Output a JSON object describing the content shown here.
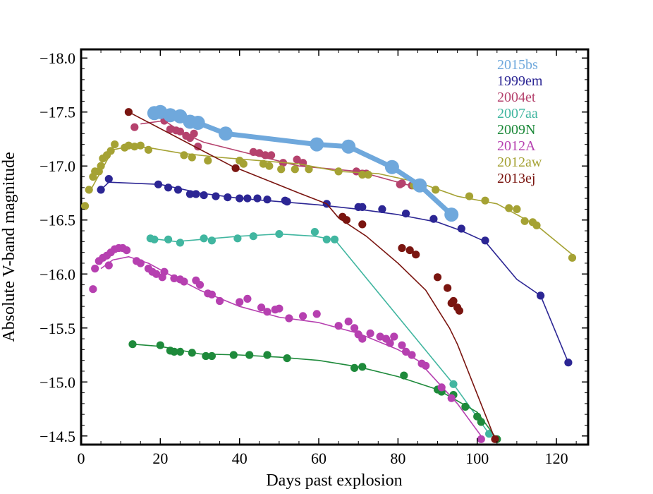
{
  "chart_data": {
    "type": "line",
    "title": "",
    "xlabel": "Days past explosion",
    "ylabel": "Absolute V-band magnitude",
    "xlim": [
      0,
      128
    ],
    "ylim": [
      -14.42,
      -18.08
    ],
    "y_inverted": true,
    "x_ticks": [
      0,
      20,
      40,
      60,
      80,
      100,
      120
    ],
    "x_tick_labels": [
      "0",
      "20",
      "40",
      "60",
      "80",
      "100",
      "120"
    ],
    "y_ticks": [
      -18.0,
      -17.5,
      -17.0,
      -16.5,
      -16.0,
      -15.5,
      -15.0,
      -14.5
    ],
    "y_tick_labels": [
      "−18.0",
      "−17.5",
      "−17.0",
      "−16.5",
      "−16.0",
      "−15.5",
      "−15.0",
      "−14.5"
    ],
    "legend_position": "top-right",
    "series": [
      {
        "name": "2015bs",
        "color": "#6fa8dc",
        "line": [
          [
            18.5,
            -17.49
          ],
          [
            20,
            -17.5
          ],
          [
            22.5,
            -17.47
          ],
          [
            25,
            -17.46
          ],
          [
            27.5,
            -17.41
          ],
          [
            29.5,
            -17.4
          ],
          [
            36.5,
            -17.3
          ],
          [
            59.5,
            -17.2
          ],
          [
            67.5,
            -17.18
          ],
          [
            78.5,
            -16.99
          ],
          [
            85.5,
            -16.82
          ],
          [
            93.5,
            -16.55
          ]
        ],
        "points": [
          [
            18.5,
            -17.49
          ],
          [
            20,
            -17.5
          ],
          [
            22.5,
            -17.47
          ],
          [
            25,
            -17.46
          ],
          [
            27.5,
            -17.41
          ],
          [
            29.5,
            -17.4
          ],
          [
            36.5,
            -17.3
          ],
          [
            59.5,
            -17.2
          ],
          [
            67.5,
            -17.18
          ],
          [
            78.5,
            -16.99
          ],
          [
            85.5,
            -16.82
          ],
          [
            93.5,
            -16.55
          ]
        ]
      },
      {
        "name": "1999em",
        "color": "#2c2694",
        "line": [
          [
            5,
            -16.78
          ],
          [
            7,
            -16.85
          ],
          [
            20,
            -16.83
          ],
          [
            30,
            -16.75
          ],
          [
            40,
            -16.7
          ],
          [
            60,
            -16.64
          ],
          [
            70,
            -16.6
          ],
          [
            80,
            -16.55
          ],
          [
            90,
            -16.48
          ],
          [
            96,
            -16.4
          ],
          [
            102,
            -16.3
          ],
          [
            110,
            -15.95
          ],
          [
            116,
            -15.8
          ],
          [
            123,
            -15.18
          ]
        ],
        "points": [
          [
            5,
            -16.78
          ],
          [
            7,
            -16.88
          ],
          [
            19.5,
            -16.83
          ],
          [
            22,
            -16.8
          ],
          [
            24.5,
            -16.78
          ],
          [
            27.5,
            -16.74
          ],
          [
            29,
            -16.74
          ],
          [
            31,
            -16.73
          ],
          [
            34,
            -16.72
          ],
          [
            37,
            -16.71
          ],
          [
            40,
            -16.7
          ],
          [
            42,
            -16.7
          ],
          [
            44.5,
            -16.7
          ],
          [
            47,
            -16.69
          ],
          [
            51.5,
            -16.68
          ],
          [
            52,
            -16.67
          ],
          [
            62,
            -16.65
          ],
          [
            70,
            -16.62
          ],
          [
            71,
            -16.62
          ],
          [
            76,
            -16.6
          ],
          [
            82,
            -16.56
          ],
          [
            89,
            -16.51
          ],
          [
            96,
            -16.42
          ],
          [
            102,
            -16.31
          ],
          [
            116,
            -15.8
          ],
          [
            123,
            -15.18
          ]
        ]
      },
      {
        "name": "2004et",
        "color": "#b5426d",
        "line": [
          [
            15,
            -17.39
          ],
          [
            21,
            -17.42
          ],
          [
            26,
            -17.3
          ],
          [
            31,
            -17.22
          ],
          [
            44,
            -17.1
          ],
          [
            55,
            -17.0
          ],
          [
            70,
            -16.95
          ],
          [
            80,
            -16.85
          ],
          [
            85,
            -16.8
          ]
        ],
        "points": [
          [
            13.5,
            -17.36
          ],
          [
            21,
            -17.42
          ],
          [
            22.5,
            -17.34
          ],
          [
            24,
            -17.33
          ],
          [
            25,
            -17.32
          ],
          [
            26.5,
            -17.28
          ],
          [
            27.5,
            -17.26
          ],
          [
            28.5,
            -17.3
          ],
          [
            29.5,
            -17.18
          ],
          [
            43.5,
            -17.13
          ],
          [
            45,
            -17.12
          ],
          [
            46.5,
            -17.1
          ],
          [
            48,
            -17.1
          ],
          [
            51,
            -17.03
          ],
          [
            54.5,
            -17.06
          ],
          [
            56,
            -17.03
          ],
          [
            69.5,
            -16.95
          ],
          [
            71,
            -16.93
          ],
          [
            72,
            -16.93
          ],
          [
            80.5,
            -16.83
          ],
          [
            81,
            -16.84
          ],
          [
            83.5,
            -16.82
          ]
        ]
      },
      {
        "name": "2007aa",
        "color": "#41b6a0",
        "line": [
          [
            17.5,
            -16.33
          ],
          [
            24,
            -16.3
          ],
          [
            40,
            -16.35
          ],
          [
            50,
            -16.37
          ],
          [
            59,
            -16.35
          ],
          [
            62,
            -16.33
          ],
          [
            64,
            -16.32
          ],
          [
            94,
            -14.98
          ],
          [
            103,
            -14.52
          ]
        ],
        "points": [
          [
            17.5,
            -16.33
          ],
          [
            18.5,
            -16.32
          ],
          [
            22,
            -16.32
          ],
          [
            25,
            -16.29
          ],
          [
            31,
            -16.33
          ],
          [
            33,
            -16.31
          ],
          [
            39.5,
            -16.33
          ],
          [
            43.5,
            -16.35
          ],
          [
            50,
            -16.37
          ],
          [
            59,
            -16.39
          ],
          [
            62,
            -16.32
          ],
          [
            64,
            -16.32
          ],
          [
            94,
            -14.98
          ],
          [
            103,
            -14.52
          ]
        ]
      },
      {
        "name": "2009N",
        "color": "#1e8a3b",
        "line": [
          [
            13,
            -15.35
          ],
          [
            20,
            -15.33
          ],
          [
            30,
            -15.26
          ],
          [
            40,
            -15.25
          ],
          [
            50,
            -15.23
          ],
          [
            60,
            -15.2
          ],
          [
            70,
            -15.14
          ],
          [
            80,
            -15.05
          ],
          [
            90,
            -14.93
          ],
          [
            100,
            -14.72
          ],
          [
            105,
            -14.47
          ]
        ],
        "points": [
          [
            13,
            -15.35
          ],
          [
            20,
            -15.34
          ],
          [
            22.5,
            -15.29
          ],
          [
            23.5,
            -15.28
          ],
          [
            25,
            -15.28
          ],
          [
            28,
            -15.27
          ],
          [
            31.5,
            -15.24
          ],
          [
            33,
            -15.24
          ],
          [
            38.5,
            -15.25
          ],
          [
            42.5,
            -15.25
          ],
          [
            47,
            -15.25
          ],
          [
            52,
            -15.22
          ],
          [
            69,
            -15.13
          ],
          [
            71,
            -15.14
          ],
          [
            81.5,
            -15.06
          ],
          [
            90,
            -14.93
          ],
          [
            91,
            -14.91
          ],
          [
            94,
            -14.88
          ],
          [
            97,
            -14.77
          ],
          [
            100,
            -14.68
          ],
          [
            101,
            -14.63
          ],
          [
            105,
            -14.47
          ]
        ]
      },
      {
        "name": "2012A",
        "color": "#b640b0",
        "line": [
          [
            5,
            -16.05
          ],
          [
            8,
            -16.13
          ],
          [
            12,
            -16.16
          ],
          [
            17,
            -16.1
          ],
          [
            22,
            -16.0
          ],
          [
            30,
            -15.85
          ],
          [
            40,
            -15.7
          ],
          [
            50,
            -15.6
          ],
          [
            60,
            -15.55
          ],
          [
            70,
            -15.45
          ],
          [
            80,
            -15.3
          ],
          [
            85,
            -15.2
          ],
          [
            90,
            -15.0
          ],
          [
            95,
            -14.8
          ],
          [
            101,
            -14.5
          ]
        ],
        "points": [
          [
            3,
            -15.86
          ],
          [
            3.5,
            -16.05
          ],
          [
            4.5,
            -16.12
          ],
          [
            5.5,
            -16.15
          ],
          [
            6.5,
            -16.17
          ],
          [
            7,
            -16.08
          ],
          [
            7.5,
            -16.2
          ],
          [
            8.5,
            -16.23
          ],
          [
            9.5,
            -16.24
          ],
          [
            10.5,
            -16.24
          ],
          [
            11.5,
            -16.22
          ],
          [
            14,
            -16.12
          ],
          [
            15,
            -16.1
          ],
          [
            17,
            -16.05
          ],
          [
            18,
            -16.02
          ],
          [
            19,
            -16.0
          ],
          [
            20.5,
            -15.97
          ],
          [
            21,
            -16.02
          ],
          [
            23.5,
            -15.96
          ],
          [
            25,
            -15.95
          ],
          [
            26,
            -15.93
          ],
          [
            29,
            -15.94
          ],
          [
            30,
            -15.9
          ],
          [
            32,
            -15.82
          ],
          [
            33,
            -15.81
          ],
          [
            35,
            -15.75
          ],
          [
            40,
            -15.74
          ],
          [
            42,
            -15.77
          ],
          [
            45.5,
            -15.69
          ],
          [
            47,
            -15.65
          ],
          [
            49,
            -15.67
          ],
          [
            50,
            -15.68
          ],
          [
            52.5,
            -15.59
          ],
          [
            56,
            -15.61
          ],
          [
            59.5,
            -15.63
          ],
          [
            65,
            -15.52
          ],
          [
            67.5,
            -15.56
          ],
          [
            69,
            -15.5
          ],
          [
            70,
            -15.44
          ],
          [
            71,
            -15.4
          ],
          [
            73,
            -15.45
          ],
          [
            75.5,
            -15.42
          ],
          [
            77,
            -15.4
          ],
          [
            78,
            -15.36
          ],
          [
            79,
            -15.42
          ],
          [
            81,
            -15.34
          ],
          [
            82,
            -15.28
          ],
          [
            83.5,
            -15.25
          ],
          [
            86,
            -15.17
          ],
          [
            87,
            -15.15
          ],
          [
            91,
            -14.95
          ],
          [
            93.5,
            -14.85
          ],
          [
            101,
            -14.47
          ]
        ]
      },
      {
        "name": "2012aw",
        "color": "#a5a234",
        "line": [
          [
            2,
            -16.75
          ],
          [
            5,
            -16.95
          ],
          [
            8,
            -17.15
          ],
          [
            12,
            -17.18
          ],
          [
            17,
            -17.17
          ],
          [
            25,
            -17.12
          ],
          [
            35,
            -17.08
          ],
          [
            45,
            -17.05
          ],
          [
            55,
            -17.02
          ],
          [
            65,
            -16.95
          ],
          [
            75,
            -16.93
          ],
          [
            85,
            -16.85
          ],
          [
            95,
            -16.72
          ],
          [
            105,
            -16.65
          ],
          [
            115,
            -16.45
          ],
          [
            124,
            -16.18
          ]
        ],
        "points": [
          [
            1,
            -16.63
          ],
          [
            2,
            -16.78
          ],
          [
            3,
            -16.9
          ],
          [
            3.5,
            -16.95
          ],
          [
            4.5,
            -16.95
          ],
          [
            5,
            -17.0
          ],
          [
            5.5,
            -17.07
          ],
          [
            6.5,
            -17.1
          ],
          [
            7.5,
            -17.14
          ],
          [
            8.5,
            -17.2
          ],
          [
            11,
            -17.17
          ],
          [
            12,
            -17.19
          ],
          [
            13.5,
            -17.18
          ],
          [
            15,
            -17.19
          ],
          [
            17,
            -17.15
          ],
          [
            26,
            -17.1
          ],
          [
            28,
            -17.08
          ],
          [
            32,
            -17.05
          ],
          [
            40,
            -17.05
          ],
          [
            41,
            -17.02
          ],
          [
            46,
            -17.02
          ],
          [
            47.5,
            -17.0
          ],
          [
            50.5,
            -16.97
          ],
          [
            54,
            -16.97
          ],
          [
            57.5,
            -16.97
          ],
          [
            65,
            -16.95
          ],
          [
            71,
            -16.92
          ],
          [
            72.5,
            -16.92
          ],
          [
            84,
            -16.82
          ],
          [
            89.5,
            -16.78
          ],
          [
            98,
            -16.72
          ],
          [
            102,
            -16.68
          ],
          [
            108,
            -16.61
          ],
          [
            110,
            -16.6
          ],
          [
            112,
            -16.49
          ],
          [
            114,
            -16.48
          ],
          [
            115,
            -16.45
          ],
          [
            124,
            -16.15
          ]
        ]
      },
      {
        "name": "2013ej",
        "color": "#7a1510",
        "line": [
          [
            12,
            -17.5
          ],
          [
            38,
            -17.0
          ],
          [
            55,
            -16.75
          ],
          [
            62,
            -16.65
          ],
          [
            65,
            -16.52
          ],
          [
            72,
            -16.35
          ],
          [
            80,
            -16.1
          ],
          [
            87,
            -15.85
          ],
          [
            93,
            -15.5
          ],
          [
            95,
            -15.35
          ],
          [
            104.5,
            -14.47
          ]
        ],
        "points": [
          [
            12,
            -17.5
          ],
          [
            39,
            -16.98
          ],
          [
            66,
            -16.53
          ],
          [
            67,
            -16.5
          ],
          [
            71,
            -16.46
          ],
          [
            81,
            -16.24
          ],
          [
            83,
            -16.22
          ],
          [
            84.5,
            -16.18
          ],
          [
            90,
            -15.97
          ],
          [
            92.5,
            -15.87
          ],
          [
            93.5,
            -15.73
          ],
          [
            94,
            -15.75
          ],
          [
            95,
            -15.69
          ],
          [
            95.5,
            -15.66
          ],
          [
            104.5,
            -14.47
          ]
        ]
      }
    ]
  }
}
